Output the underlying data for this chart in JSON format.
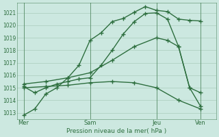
{
  "bg_color": "#cce8e0",
  "grid_color": "#aaccbb",
  "line_color": "#2d6e3e",
  "marker": "+",
  "markersize": 4,
  "linewidth": 1.0,
  "ylim": [
    1012.5,
    1021.8
  ],
  "yticks": [
    1013,
    1014,
    1015,
    1016,
    1017,
    1018,
    1019,
    1020,
    1021
  ],
  "xlabel": "Pression niveau de la mer( hPa )",
  "xtick_labels": [
    "Mer",
    "Sam",
    "Jeu",
    "Ven"
  ],
  "xtick_positions": [
    0,
    3,
    6,
    8
  ],
  "vlines_x": [
    0,
    3,
    6,
    8
  ],
  "lines": [
    {
      "x": [
        0,
        0.5,
        1.0,
        1.5,
        2.0,
        2.5,
        3.0,
        3.5,
        4.0,
        4.5,
        5.0,
        5.5,
        6.0,
        6.5,
        7.0,
        7.5,
        8.0
      ],
      "y": [
        1012.8,
        1013.3,
        1014.5,
        1015.0,
        1015.8,
        1016.8,
        1018.8,
        1019.4,
        1020.3,
        1020.55,
        1021.05,
        1021.5,
        1021.2,
        1021.1,
        1020.5,
        1020.4,
        1020.35
      ]
    },
    {
      "x": [
        0,
        0.5,
        1.0,
        1.5,
        2.0,
        2.5,
        3.0,
        3.5,
        4.0,
        4.5,
        5.0,
        5.5,
        6.0,
        6.5,
        7.0,
        7.5,
        8.0
      ],
      "y": [
        1015.1,
        1014.6,
        1015.0,
        1015.3,
        1015.5,
        1015.7,
        1015.8,
        1016.8,
        1018.0,
        1019.3,
        1020.3,
        1020.95,
        1021.0,
        1020.5,
        1018.3,
        1015.0,
        1013.5
      ]
    },
    {
      "x": [
        0,
        1,
        2,
        3,
        4,
        5,
        6,
        6.5,
        7,
        7.5,
        8
      ],
      "y": [
        1015.3,
        1015.5,
        1015.8,
        1016.2,
        1017.2,
        1018.3,
        1019.0,
        1018.8,
        1018.3,
        1015.0,
        1014.6
      ]
    },
    {
      "x": [
        0,
        1,
        2,
        3,
        4,
        5,
        6,
        7,
        8
      ],
      "y": [
        1015.0,
        1015.1,
        1015.2,
        1015.4,
        1015.5,
        1015.4,
        1015.0,
        1014.0,
        1013.3
      ]
    }
  ],
  "figsize": [
    3.2,
    2.0
  ],
  "dpi": 100
}
